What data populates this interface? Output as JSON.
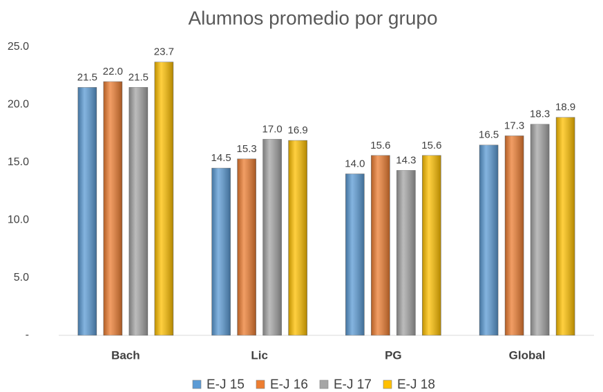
{
  "chart_data": {
    "type": "bar",
    "title": "Alumnos promedio por grupo",
    "categories": [
      "Bach",
      "Lic",
      "PG",
      "Global"
    ],
    "series": [
      {
        "name": "E-J 15",
        "color": "#5b9bd5",
        "values": [
          21.5,
          14.5,
          14,
          16.5
        ],
        "value_labels": [
          "21.5",
          "14.5",
          "14.0",
          "16.5"
        ]
      },
      {
        "name": "E-J 16",
        "color": "#ed7d31",
        "values": [
          22,
          15.3,
          15.6,
          17.3
        ],
        "value_labels": [
          "22.0",
          "15.3",
          "15.6",
          "17.3"
        ]
      },
      {
        "name": "E-J 17",
        "color": "#a5a5a5",
        "values": [
          21.5,
          17,
          14.3,
          18.3
        ],
        "value_labels": [
          "21.5",
          "17.0",
          "14.3",
          "18.3"
        ]
      },
      {
        "name": "E-J 18",
        "color": "#ffc000",
        "values": [
          23.7,
          16.9,
          15.6,
          18.9
        ],
        "value_labels": [
          "23.7",
          "16.9",
          "15.6",
          "18.9"
        ]
      }
    ],
    "ylim": [
      0,
      25
    ],
    "yticks": [
      {
        "value": 0,
        "label": "-"
      },
      {
        "value": 5,
        "label": "5.0"
      },
      {
        "value": 10,
        "label": "10.0"
      },
      {
        "value": 15,
        "label": "15.0"
      },
      {
        "value": 20,
        "label": "20.0"
      },
      {
        "value": 25,
        "label": "25.0"
      }
    ],
    "grid": false,
    "legend": "bottom"
  }
}
